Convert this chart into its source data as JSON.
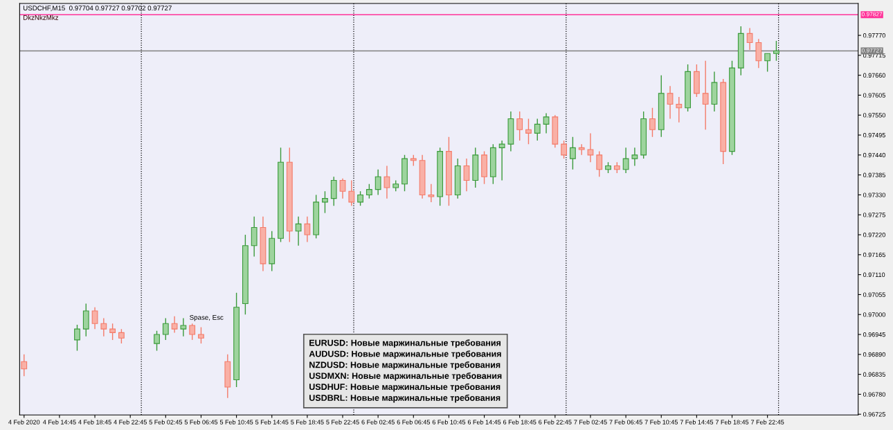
{
  "chart_data": {
    "type": "candlestick",
    "title": "USDCHF,M15  0.97704 0.97727 0.97702 0.97727",
    "subtitle": "DkzNkzMkz",
    "annotations": [
      "Spase, Esc",
      "EURUSD: Новые маржинальные требования",
      "AUDUSD: Новые маржинальные требования",
      "NZDUSD: Новые маржинальные требования",
      "USDMXN: Новые маржинальные требования",
      "USDHUF: Новые маржинальные требования",
      "USDBRL: Новые маржинальные требования"
    ],
    "x": [
      "2020-02-04T10:45",
      "2020-02-04T16:45",
      "2020-02-04T17:45",
      "2020-02-04T18:45",
      "2020-02-04T19:45",
      "2020-02-04T20:45",
      "2020-02-04T21:45",
      "2020-02-05T01:45",
      "2020-02-05T02:45",
      "2020-02-05T03:45",
      "2020-02-05T04:45",
      "2020-02-05T05:45",
      "2020-02-05T06:45",
      "2020-02-05T09:45",
      "2020-02-05T10:45",
      "2020-02-05T11:45",
      "2020-02-05T12:45",
      "2020-02-05T13:45",
      "2020-02-05T14:45",
      "2020-02-05T15:45",
      "2020-02-05T16:45",
      "2020-02-05T17:45",
      "2020-02-05T18:45",
      "2020-02-05T19:45",
      "2020-02-05T20:45",
      "2020-02-05T21:45",
      "2020-02-05T22:45",
      "2020-02-05T23:45",
      "2020-02-06T00:45",
      "2020-02-06T01:45",
      "2020-02-06T02:45",
      "2020-02-06T03:45",
      "2020-02-06T04:45",
      "2020-02-06T05:45",
      "2020-02-06T06:45",
      "2020-02-06T07:45",
      "2020-02-06T08:45",
      "2020-02-06T09:45",
      "2020-02-06T10:45",
      "2020-02-06T11:45",
      "2020-02-06T12:45",
      "2020-02-06T13:45",
      "2020-02-06T14:45",
      "2020-02-06T15:45",
      "2020-02-06T16:45",
      "2020-02-06T17:45",
      "2020-02-06T18:45",
      "2020-02-06T19:45",
      "2020-02-06T20:45",
      "2020-02-06T21:45",
      "2020-02-06T22:45",
      "2020-02-06T23:45",
      "2020-02-07T00:45",
      "2020-02-07T01:45",
      "2020-02-07T02:45",
      "2020-02-07T03:45",
      "2020-02-07T04:45",
      "2020-02-07T05:45",
      "2020-02-07T06:45",
      "2020-02-07T07:45",
      "2020-02-07T08:45",
      "2020-02-07T09:45",
      "2020-02-07T10:45",
      "2020-02-07T11:45",
      "2020-02-07T12:45",
      "2020-02-07T13:45",
      "2020-02-07T14:45",
      "2020-02-07T15:45",
      "2020-02-07T16:45",
      "2020-02-07T17:45",
      "2020-02-07T18:45",
      "2020-02-07T19:45",
      "2020-02-07T20:45",
      "2020-02-07T21:45",
      "2020-02-07T22:45",
      "2020-02-07T23:45"
    ],
    "ohlc": [
      [
        0.9687,
        0.9689,
        0.9683,
        0.9685
      ],
      [
        0.9693,
        0.96972,
        0.969,
        0.9696
      ],
      [
        0.9696,
        0.9703,
        0.9694,
        0.9701
      ],
      [
        0.9701,
        0.9702,
        0.9696,
        0.96975
      ],
      [
        0.96975,
        0.9699,
        0.9694,
        0.9696
      ],
      [
        0.9696,
        0.96975,
        0.9693,
        0.9695
      ],
      [
        0.9695,
        0.9696,
        0.9692,
        0.96935
      ],
      [
        0.9692,
        0.96955,
        0.969,
        0.96945
      ],
      [
        0.96945,
        0.9699,
        0.9693,
        0.96975
      ],
      [
        0.96975,
        0.96995,
        0.9695,
        0.9696
      ],
      [
        0.9696,
        0.9699,
        0.9694,
        0.9697
      ],
      [
        0.9697,
        0.96975,
        0.9693,
        0.96945
      ],
      [
        0.96945,
        0.96965,
        0.9692,
        0.96935
      ],
      [
        0.9687,
        0.9689,
        0.9677,
        0.968
      ],
      [
        0.9682,
        0.9706,
        0.968,
        0.9702
      ],
      [
        0.9703,
        0.9722,
        0.97,
        0.9719
      ],
      [
        0.9719,
        0.9727,
        0.9716,
        0.9724
      ],
      [
        0.9724,
        0.9727,
        0.9712,
        0.9714
      ],
      [
        0.9714,
        0.9723,
        0.9712,
        0.9721
      ],
      [
        0.9721,
        0.9746,
        0.972,
        0.9742
      ],
      [
        0.9742,
        0.9746,
        0.972,
        0.9723
      ],
      [
        0.9723,
        0.9727,
        0.9719,
        0.9725
      ],
      [
        0.9725,
        0.9727,
        0.972,
        0.9722
      ],
      [
        0.9722,
        0.9733,
        0.9721,
        0.9731
      ],
      [
        0.9731,
        0.9734,
        0.9728,
        0.9732
      ],
      [
        0.9732,
        0.9738,
        0.973,
        0.9737
      ],
      [
        0.9737,
        0.97375,
        0.9732,
        0.9734
      ],
      [
        0.9734,
        0.9737,
        0.973,
        0.9731
      ],
      [
        0.9731,
        0.9734,
        0.973,
        0.9733
      ],
      [
        0.9733,
        0.9736,
        0.9732,
        0.97345
      ],
      [
        0.97345,
        0.974,
        0.9733,
        0.9738
      ],
      [
        0.9738,
        0.9741,
        0.9732,
        0.9735
      ],
      [
        0.9735,
        0.9737,
        0.9734,
        0.9736
      ],
      [
        0.9736,
        0.9744,
        0.9734,
        0.9743
      ],
      [
        0.9743,
        0.9744,
        0.9741,
        0.97425
      ],
      [
        0.97425,
        0.9744,
        0.9732,
        0.9733
      ],
      [
        0.9733,
        0.9736,
        0.9731,
        0.97325
      ],
      [
        0.97325,
        0.9746,
        0.973,
        0.9745
      ],
      [
        0.9745,
        0.9749,
        0.973,
        0.9733
      ],
      [
        0.9733,
        0.9743,
        0.9732,
        0.9741
      ],
      [
        0.9741,
        0.9743,
        0.9734,
        0.9737
      ],
      [
        0.9737,
        0.9746,
        0.9735,
        0.9744
      ],
      [
        0.9744,
        0.9745,
        0.9736,
        0.9738
      ],
      [
        0.9738,
        0.9747,
        0.9736,
        0.9746
      ],
      [
        0.9746,
        0.9748,
        0.9737,
        0.9747
      ],
      [
        0.9747,
        0.9756,
        0.9745,
        0.9754
      ],
      [
        0.9754,
        0.9756,
        0.9748,
        0.9751
      ],
      [
        0.9751,
        0.9754,
        0.9747,
        0.975
      ],
      [
        0.975,
        0.9754,
        0.9748,
        0.97525
      ],
      [
        0.97525,
        0.97555,
        0.975,
        0.97545
      ],
      [
        0.97545,
        0.9755,
        0.9746,
        0.9747
      ],
      [
        0.9747,
        0.9748,
        0.9743,
        0.9744
      ],
      [
        0.9743,
        0.9749,
        0.974,
        0.9746
      ],
      [
        0.9746,
        0.9747,
        0.9744,
        0.97455
      ],
      [
        0.97455,
        0.975,
        0.9742,
        0.9744
      ],
      [
        0.9744,
        0.9745,
        0.9738,
        0.974
      ],
      [
        0.974,
        0.9742,
        0.9739,
        0.9741
      ],
      [
        0.9741,
        0.9742,
        0.9739,
        0.974
      ],
      [
        0.974,
        0.9746,
        0.9739,
        0.9743
      ],
      [
        0.9743,
        0.9746,
        0.9741,
        0.9744
      ],
      [
        0.9744,
        0.9756,
        0.9743,
        0.9754
      ],
      [
        0.9754,
        0.9757,
        0.9749,
        0.9751
      ],
      [
        0.9751,
        0.9766,
        0.9749,
        0.9761
      ],
      [
        0.9761,
        0.9763,
        0.9754,
        0.9758
      ],
      [
        0.9758,
        0.976,
        0.9753,
        0.9757
      ],
      [
        0.9757,
        0.9769,
        0.9756,
        0.9767
      ],
      [
        0.9767,
        0.9769,
        0.976,
        0.9761
      ],
      [
        0.9761,
        0.977,
        0.9751,
        0.9758
      ],
      [
        0.9758,
        0.9767,
        0.9756,
        0.9764
      ],
      [
        0.9764,
        0.9765,
        0.97415,
        0.9745
      ],
      [
        0.9745,
        0.977,
        0.9744,
        0.9768
      ],
      [
        0.9768,
        0.97795,
        0.9766,
        0.97775
      ],
      [
        0.97775,
        0.9779,
        0.9773,
        0.9775
      ],
      [
        0.9775,
        0.9776,
        0.9768,
        0.977
      ],
      [
        0.977,
        0.9772,
        0.9767,
        0.9772
      ],
      [
        0.9772,
        0.97755,
        0.977,
        0.97727
      ]
    ],
    "xlim": [
      "2020-02-04T10:15",
      "2020-02-08T09:00"
    ],
    "xticks": [
      {
        "value": "2020-02-04T10:45",
        "label": "4 Feb 2020"
      },
      {
        "value": "2020-02-04T14:45",
        "label": "4 Feb 14:45"
      },
      {
        "value": "2020-02-04T18:45",
        "label": "4 Feb 18:45"
      },
      {
        "value": "2020-02-04T22:45",
        "label": "4 Feb 22:45"
      },
      {
        "value": "2020-02-05T02:45",
        "label": "5 Feb 02:45"
      },
      {
        "value": "2020-02-05T06:45",
        "label": "5 Feb 06:45"
      },
      {
        "value": "2020-02-05T10:45",
        "label": "5 Feb 10:45"
      },
      {
        "value": "2020-02-05T14:45",
        "label": "5 Feb 14:45"
      },
      {
        "value": "2020-02-05T18:45",
        "label": "5 Feb 18:45"
      },
      {
        "value": "2020-02-05T22:45",
        "label": "5 Feb 22:45"
      },
      {
        "value": "2020-02-06T02:45",
        "label": "6 Feb 02:45"
      },
      {
        "value": "2020-02-06T06:45",
        "label": "6 Feb 06:45"
      },
      {
        "value": "2020-02-06T10:45",
        "label": "6 Feb 10:45"
      },
      {
        "value": "2020-02-06T14:45",
        "label": "6 Feb 14:45"
      },
      {
        "value": "2020-02-06T18:45",
        "label": "6 Feb 18:45"
      },
      {
        "value": "2020-02-06T22:45",
        "label": "6 Feb 22:45"
      },
      {
        "value": "2020-02-07T02:45",
        "label": "7 Feb 02:45"
      },
      {
        "value": "2020-02-07T06:45",
        "label": "7 Feb 06:45"
      },
      {
        "value": "2020-02-07T10:45",
        "label": "7 Feb 10:45"
      },
      {
        "value": "2020-02-07T14:45",
        "label": "7 Feb 14:45"
      },
      {
        "value": "2020-02-07T18:45",
        "label": "7 Feb 18:45"
      },
      {
        "value": "2020-02-07T22:45",
        "label": "7 Feb 22:45"
      }
    ],
    "ylim": [
      0.96723,
      0.97858
    ],
    "yticks": [
      {
        "value": 0.96725,
        "label": "0.96725"
      },
      {
        "value": 0.9678,
        "label": "0.96780"
      },
      {
        "value": 0.96835,
        "label": "0.96835"
      },
      {
        "value": 0.9689,
        "label": "0.96890"
      },
      {
        "value": 0.96945,
        "label": "0.96945"
      },
      {
        "value": 0.97,
        "label": "0.97000"
      },
      {
        "value": 0.97055,
        "label": "0.97055"
      },
      {
        "value": 0.9711,
        "label": "0.97110"
      },
      {
        "value": 0.97165,
        "label": "0.97165"
      },
      {
        "value": 0.9722,
        "label": "0.97220"
      },
      {
        "value": 0.97275,
        "label": "0.97275"
      },
      {
        "value": 0.9733,
        "label": "0.97330"
      },
      {
        "value": 0.97385,
        "label": "0.97385"
      },
      {
        "value": 0.9744,
        "label": "0.97440"
      },
      {
        "value": 0.97495,
        "label": "0.97495"
      },
      {
        "value": 0.9755,
        "label": "0.97550"
      },
      {
        "value": 0.97605,
        "label": "0.97605"
      },
      {
        "value": 0.9766,
        "label": "0.97660"
      },
      {
        "value": 0.97715,
        "label": "0.97715"
      },
      {
        "value": 0.9777,
        "label": "0.97770"
      }
    ],
    "ref_lines": [
      {
        "axis": "y",
        "value": 0.97827,
        "label": "0.97827",
        "color": "#ff3399",
        "line_style": "solid"
      },
      {
        "axis": "y",
        "value": 0.97727,
        "label": "0.97727",
        "color": "#808080",
        "line_style": "solid"
      },
      {
        "axis": "x",
        "value": "2020-02-05T00:00",
        "label": null,
        "color": "#000000",
        "line_style": "dotted"
      },
      {
        "axis": "x",
        "value": "2020-02-06T00:00",
        "label": null,
        "color": "#000000",
        "line_style": "dotted"
      },
      {
        "axis": "x",
        "value": "2020-02-07T00:00",
        "label": null,
        "color": "#000000",
        "line_style": "dotted"
      },
      {
        "axis": "x",
        "value": "2020-02-08T00:00",
        "label": null,
        "color": "#000000",
        "line_style": "dotted"
      }
    ],
    "grid": false
  }
}
